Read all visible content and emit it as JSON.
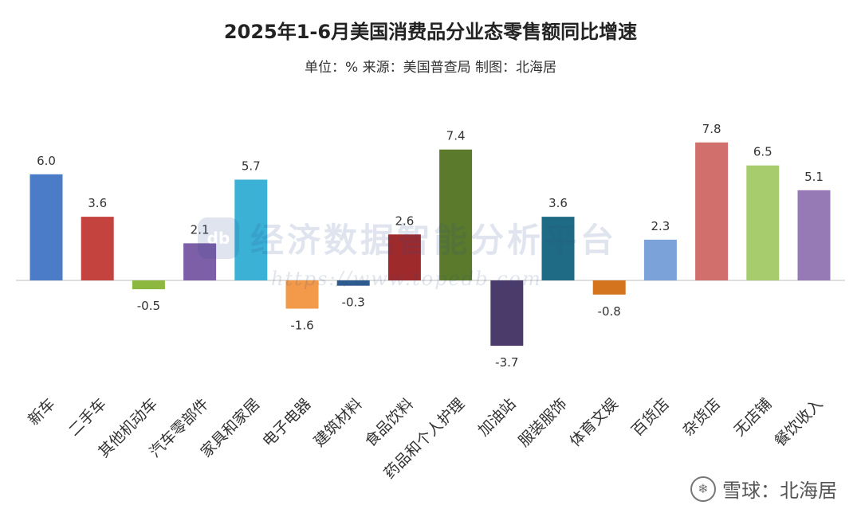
{
  "header": {
    "title": "2025年1-6月美国消费品分业态零售额同比增速",
    "subtitle": "单位：% 来源：美国普查局 制图：北海居"
  },
  "watermark": {
    "text": "经济数据智能分析平台",
    "url": "https://www.topedb.com"
  },
  "footer": {
    "text": "雪球：北海居",
    "icon": "snowball-icon"
  },
  "chart_data": {
    "type": "bar",
    "categories": [
      "新车",
      "二手车",
      "其他机动车",
      "汽车零部件",
      "家具和家居",
      "电子电器",
      "建筑材料",
      "食品饮料",
      "药品和个人护理",
      "加油站",
      "服装服饰",
      "体育文娱",
      "百货店",
      "杂货店",
      "无店铺",
      "餐饮收入"
    ],
    "values": [
      6.0,
      3.6,
      -0.5,
      2.1,
      5.7,
      -1.6,
      -0.3,
      2.6,
      7.4,
      -3.7,
      3.6,
      -0.8,
      2.3,
      7.8,
      6.5,
      5.1
    ],
    "labels": [
      "6.0",
      "3.6",
      "-0.5",
      "2.1",
      "5.7",
      "-1.6",
      "-0.3",
      "2.6",
      "7.4",
      "-3.7",
      "3.6",
      "-0.8",
      "2.3",
      "7.8",
      "6.5",
      "5.1"
    ],
    "colors": [
      "#4a7cc8",
      "#c4433f",
      "#8db83f",
      "#7d5fa8",
      "#3cb1d6",
      "#f2994a",
      "#2e5c8e",
      "#9e2a2b",
      "#5b7a2b",
      "#4a3b6b",
      "#1f6b85",
      "#d4741f",
      "#7ba3d9",
      "#d16f6c",
      "#a7cc6d",
      "#957ab5"
    ],
    "title": "2025年1-6月美国消费品分业态零售额同比增速",
    "subtitle": "单位：% 来源：美国普查局 制图：北海居",
    "xlabel": "",
    "ylabel": "",
    "ylim": [
      -3.7,
      7.8
    ],
    "grid": false
  }
}
